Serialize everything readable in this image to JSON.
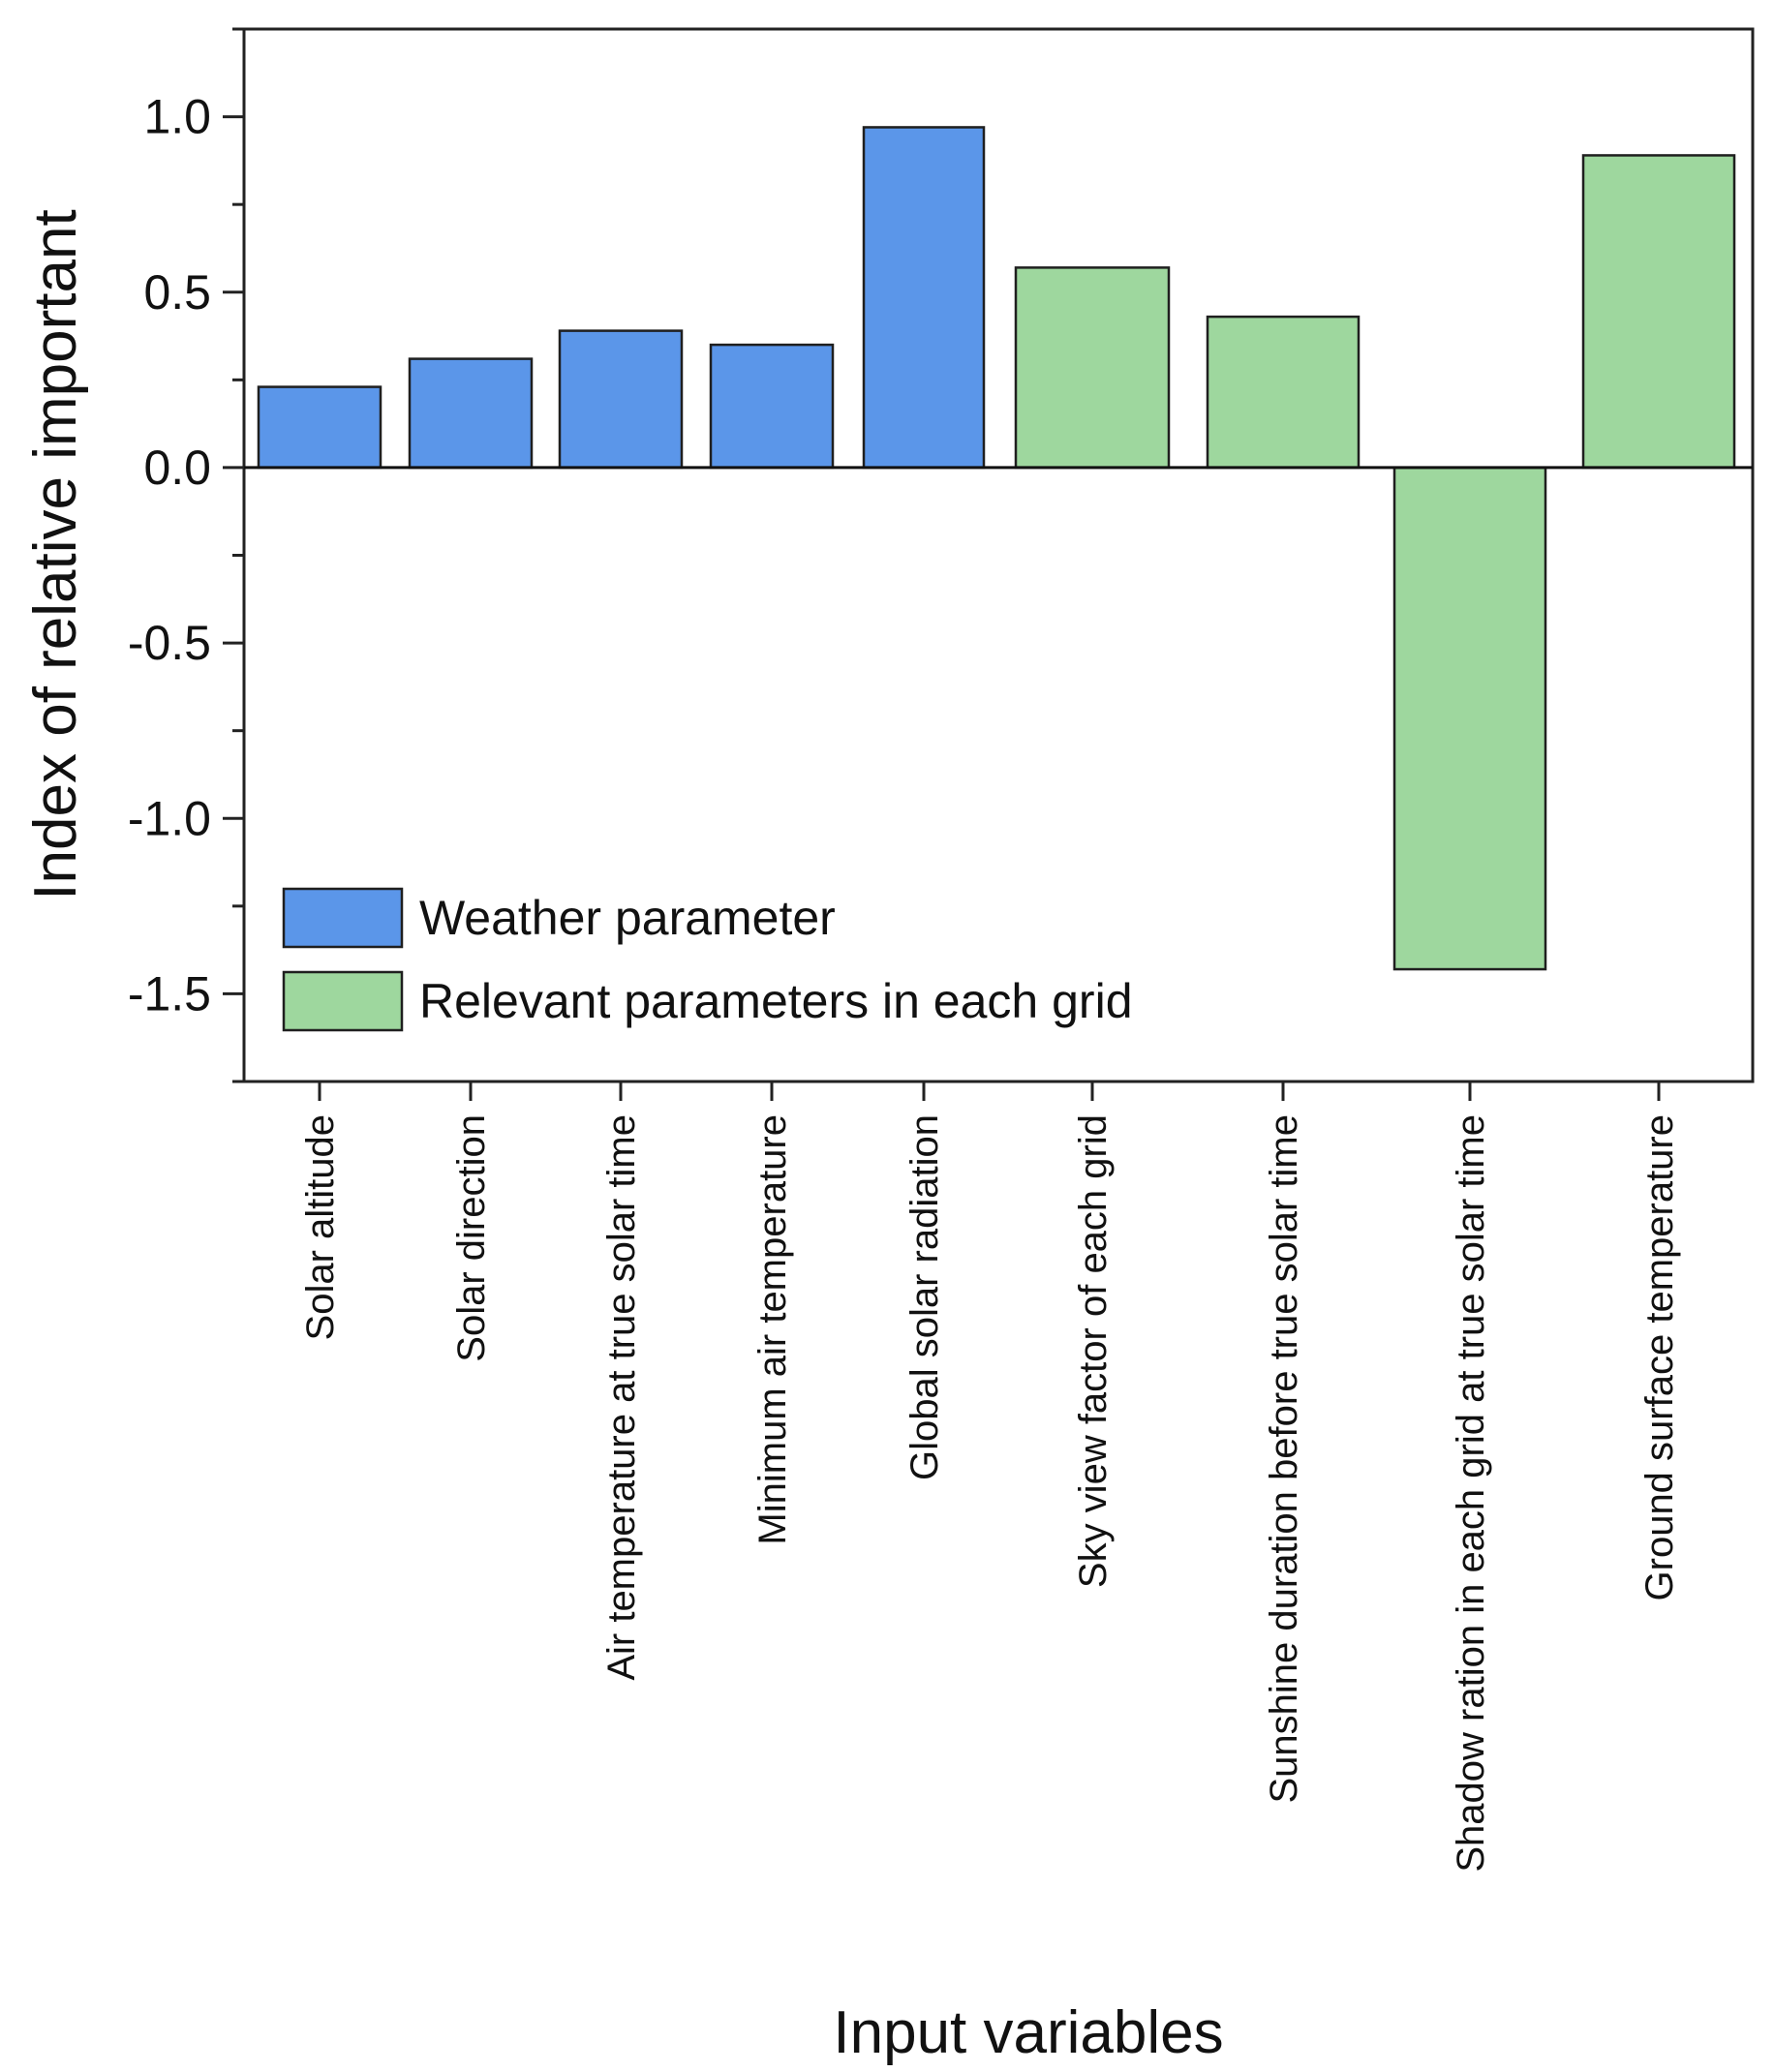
{
  "chart_data": {
    "type": "bar",
    "title": "",
    "xlabel": "Input variables",
    "ylabel": "Index of relative important",
    "ylim": [
      -1.75,
      1.25
    ],
    "yticks": [
      1.0,
      0.5,
      0.0,
      -0.5,
      -1.0,
      -1.5
    ],
    "ytick_labels": [
      "1.0",
      "0.5",
      "0.0",
      "-0.5",
      "-1.0",
      "-1.5"
    ],
    "grid": false,
    "legend_position": "bottom-left",
    "groups": [
      {
        "name": "Weather parameter",
        "color": "#5b96e9"
      },
      {
        "name": "Relevant parameters in each grid",
        "color": "#9ed79e"
      }
    ],
    "categories": [
      "Solar altitude",
      "Solar direction",
      "Air temperature at true solar time",
      "Minimum air temperature",
      "Global solar radiation",
      "Sky view factor of each grid",
      "Sunshine duration before true solar time",
      "Shadow ration in each grid at true solar time",
      "Ground surface temperature"
    ],
    "values": [
      0.23,
      0.31,
      0.39,
      0.35,
      0.97,
      0.57,
      0.43,
      -1.43,
      0.89
    ],
    "group_index": [
      0,
      0,
      0,
      0,
      0,
      1,
      1,
      1,
      1
    ]
  }
}
